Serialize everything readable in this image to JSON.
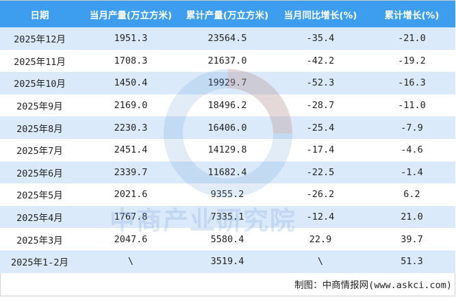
{
  "table": {
    "headers": [
      "日期",
      "当月产量(万立方米)",
      "累计产量(万立方米)",
      "当月同比增长(%)",
      "累计增长(%)"
    ],
    "rows": [
      [
        "2025年12月",
        "1951.3",
        "23564.5",
        "-35.4",
        "-21.0"
      ],
      [
        "2025年11月",
        "1708.3",
        "21637.0",
        "-42.2",
        "-19.2"
      ],
      [
        "2025年10月",
        "1450.4",
        "19929.7",
        "-52.3",
        "-16.3"
      ],
      [
        "2025年9月",
        "2169.0",
        "18496.2",
        "-28.7",
        "-11.0"
      ],
      [
        "2025年8月",
        "2230.3",
        "16406.0",
        "-25.4",
        "-7.9"
      ],
      [
        "2025年7月",
        "2451.4",
        "14129.8",
        "-17.4",
        "-4.6"
      ],
      [
        "2025年6月",
        "2339.7",
        "11682.4",
        "-22.5",
        "-1.4"
      ],
      [
        "2025年5月",
        "2021.6",
        "9355.2",
        "-26.2",
        "6.2"
      ],
      [
        "2025年4月",
        "1767.8",
        "7335.1",
        "-12.4",
        "21.0"
      ],
      [
        "2025年3月",
        "2047.6",
        "5580.4",
        "22.9",
        "39.7"
      ],
      [
        "2025年1-2月",
        "\\",
        "3519.4",
        "\\",
        "51.3"
      ]
    ]
  },
  "footer": "制图：中商情报网(www.askci.com)",
  "watermark": "中商产业研究院",
  "colors": {
    "header": "#3d9ef0",
    "row_alt": "#dbeafb"
  }
}
